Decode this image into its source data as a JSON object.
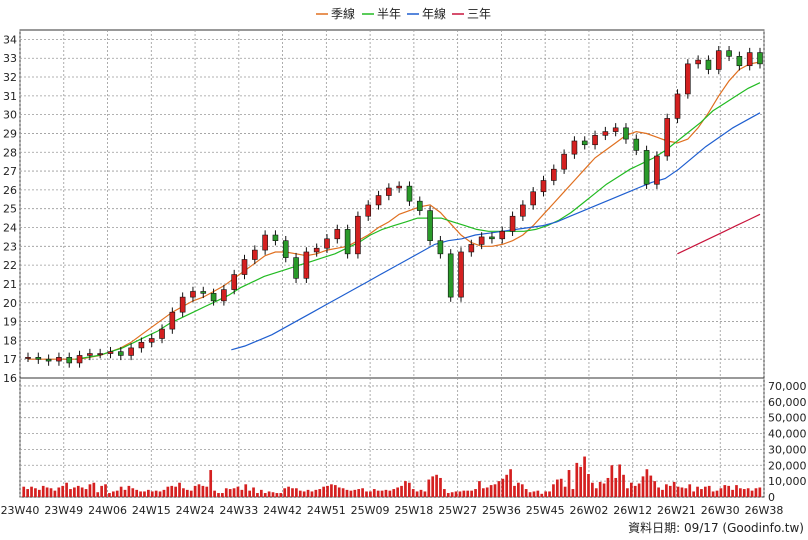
{
  "legend": [
    {
      "name": "季線",
      "color": "#e07020"
    },
    {
      "name": "半年",
      "color": "#22bb22"
    },
    {
      "name": "年線",
      "color": "#1f5fd0"
    },
    {
      "name": "三年",
      "color": "#c8143c"
    }
  ],
  "footer": "資料日期: 09/17   (Goodinfo.tw)",
  "chart_data": [
    {
      "type": "candlestick",
      "title": "",
      "x_tick_labels": [
        "23W40",
        "23W49",
        "24W06",
        "24W15",
        "24W24",
        "24W33",
        "24W42",
        "24W51",
        "25W09",
        "25W18",
        "25W27",
        "25W36",
        "25W45",
        "26W02",
        "26W12",
        "26W21",
        "26W30",
        "26W38"
      ],
      "ylim": [
        16,
        34.5
      ],
      "yticks": [
        16,
        17,
        18,
        19,
        20,
        21,
        22,
        23,
        24,
        25,
        26,
        27,
        28,
        29,
        30,
        31,
        32,
        33,
        34
      ],
      "grid": true,
      "legend_position": "top-center",
      "series": [
        {
          "name": "季線",
          "values": [
            17,
            17,
            17,
            17,
            17,
            17,
            17.1,
            17.2,
            17.4,
            17.6,
            17.9,
            18.3,
            18.7,
            19.1,
            19.5,
            19.8,
            20.1,
            20.3,
            20.6,
            20.9,
            21.3,
            21.7,
            22.1,
            22.5,
            22.7,
            22.7,
            22.6,
            22.5,
            22.6,
            22.8,
            22.9,
            23,
            23.3,
            23.6,
            24,
            24.3,
            24.7,
            24.9,
            25.1,
            25.2,
            24.8,
            24.2,
            23.6,
            23.2,
            23,
            23,
            23.1,
            23.3,
            23.6,
            24.1,
            24.7,
            25.3,
            25.9,
            26.5,
            27.1,
            27.7,
            28.1,
            28.5,
            28.9,
            29.1,
            29,
            28.8,
            28.6,
            28.5,
            28.7,
            29.3,
            30.1,
            31,
            31.8,
            32.4,
            32.7,
            32.8
          ]
        },
        {
          "name": "半年",
          "values": [
            null,
            null,
            null,
            null,
            17,
            17.1,
            17.2,
            17.4,
            17.6,
            17.9,
            18.2,
            18.5,
            18.9,
            19.2,
            19.5,
            19.8,
            20.1,
            20.4,
            20.8,
            21.1,
            21.4,
            21.6,
            21.8,
            22,
            22.2,
            22.4,
            22.6,
            22.9,
            23.2,
            23.6,
            23.9,
            24.1,
            24.3,
            24.5,
            24.5,
            24.5,
            24.3,
            24.1,
            23.9,
            23.8,
            23.8,
            23.8,
            23.8,
            23.9,
            24.1,
            24.4,
            24.8,
            25.3,
            25.8,
            26.3,
            26.7,
            27.1,
            27.4,
            27.7,
            28.1,
            28.6,
            29.1,
            29.6,
            30.2,
            30.6,
            31.0,
            31.4,
            31.7
          ]
        },
        {
          "name": "年線",
          "values": [
            null,
            null,
            null,
            null,
            null,
            null,
            null,
            null,
            null,
            null,
            null,
            null,
            null,
            null,
            null,
            17.5,
            17.7,
            18,
            18.3,
            18.7,
            19.1,
            19.5,
            19.9,
            20.3,
            20.7,
            21.1,
            21.5,
            21.9,
            22.3,
            22.7,
            23.1,
            23.3,
            23.4,
            23.6,
            23.7,
            23.8,
            23.9,
            24,
            24.1,
            24.3,
            24.6,
            24.9,
            25.2,
            25.5,
            25.8,
            26.1,
            26.4,
            26.6,
            27.1,
            27.7,
            28.3,
            28.8,
            29.3,
            29.7,
            30.1
          ]
        },
        {
          "name": "三年",
          "values": [
            null,
            null,
            null,
            null,
            null,
            null,
            null,
            null,
            null,
            null,
            null,
            null,
            null,
            null,
            null,
            null,
            null,
            null,
            null,
            null,
            null,
            null,
            null,
            null,
            null,
            null,
            null,
            null,
            null,
            null,
            null,
            null,
            null,
            null,
            null,
            null,
            null,
            null,
            null,
            null,
            null,
            null,
            null,
            null,
            null,
            null,
            null,
            null,
            null,
            null,
            null,
            null,
            null,
            null,
            null,
            22.6,
            22.9,
            23.2,
            23.5,
            23.8,
            24.1,
            24.4,
            24.7
          ]
        }
      ],
      "candles_close": [
        17.1,
        17,
        16.9,
        17.1,
        16.8,
        17.2,
        17.3,
        17.3,
        17.4,
        17.2,
        17.6,
        17.9,
        18.1,
        18.6,
        19.5,
        20.3,
        20.6,
        20.5,
        20.1,
        20.7,
        21.5,
        22.3,
        22.8,
        23.6,
        23.3,
        22.4,
        21.3,
        22.7,
        22.9,
        23.4,
        23.9,
        22.6,
        24.6,
        25.2,
        25.7,
        26.1,
        26.2,
        25.4,
        24.9,
        23.3,
        22.6,
        20.3,
        22.7,
        23.1,
        23.5,
        23.4,
        23.8,
        24.6,
        25.2,
        25.9,
        26.5,
        27.1,
        27.9,
        28.6,
        28.4,
        28.9,
        29.1,
        29.3,
        28.7,
        28.1,
        26.3,
        27.8,
        29.8,
        31.1,
        32.7,
        32.9,
        32.4,
        33.4,
        33.1,
        32.6,
        33.3,
        32.7
      ]
    },
    {
      "type": "bar",
      "title": "",
      "ylim": [
        0,
        75000
      ],
      "yticks": [
        0,
        10000,
        20000,
        30000,
        40000,
        50000,
        60000,
        70000
      ],
      "ytick_labels": [
        "0",
        "10,000",
        "20,000",
        "30,000",
        "40,000",
        "50,000",
        "60,000",
        "70,000"
      ],
      "values": [
        6500,
        5000,
        6500,
        5500,
        4500,
        7000,
        6000,
        5500,
        4000,
        6000,
        7000,
        9000,
        5000,
        6000,
        7000,
        6000,
        5000,
        8000,
        9000,
        3000,
        7000,
        8000,
        2500,
        3500,
        4000,
        6500,
        4500,
        7000,
        5500,
        4500,
        3500,
        3500,
        4500,
        3500,
        4000,
        3500,
        4500,
        6500,
        7000,
        6500,
        9000,
        5500,
        4500,
        4000,
        7000,
        8000,
        7000,
        6500,
        17000,
        4000,
        2500,
        2500,
        5500,
        5000,
        5500,
        6500,
        4500,
        8000,
        4000,
        6000,
        2500,
        4500,
        2500,
        3500,
        3000,
        2500,
        2500,
        5500,
        6500,
        5500,
        5500,
        4000,
        3500,
        4500,
        3500,
        4500,
        5000,
        6500,
        7000,
        8000,
        7500,
        6000,
        5500,
        4500,
        4000,
        4500,
        5000,
        5500,
        3500,
        3500,
        5000,
        4000,
        4000,
        4500,
        4000,
        5000,
        6000,
        7000,
        10000,
        9000,
        5000,
        3500,
        4500,
        3500,
        11000,
        13000,
        14000,
        12000,
        5000,
        2500,
        3000,
        3500,
        3500,
        4000,
        4000,
        4000,
        5000,
        10000,
        5500,
        6000,
        7500,
        8000,
        10000,
        11500,
        14000,
        17500,
        7000,
        9000,
        8000,
        5000,
        3000,
        3500,
        4000,
        2000,
        3500,
        3500,
        8000,
        11000,
        11500,
        6500,
        17000,
        5000,
        21500,
        19000,
        25500,
        14500,
        9000,
        5500,
        9500,
        8500,
        12000,
        20000,
        12000,
        20500,
        14000,
        5500,
        9000,
        7000,
        8500,
        13000,
        17500,
        13500,
        10000,
        6000,
        4500,
        8000,
        7000,
        9500,
        6500,
        6000,
        5500,
        8000,
        3500,
        6500,
        5000,
        6500,
        7000,
        3500,
        4000,
        5500,
        7500,
        7000,
        4500,
        7500,
        5500,
        5000,
        5500,
        4000,
        5500,
        6000
      ]
    }
  ]
}
